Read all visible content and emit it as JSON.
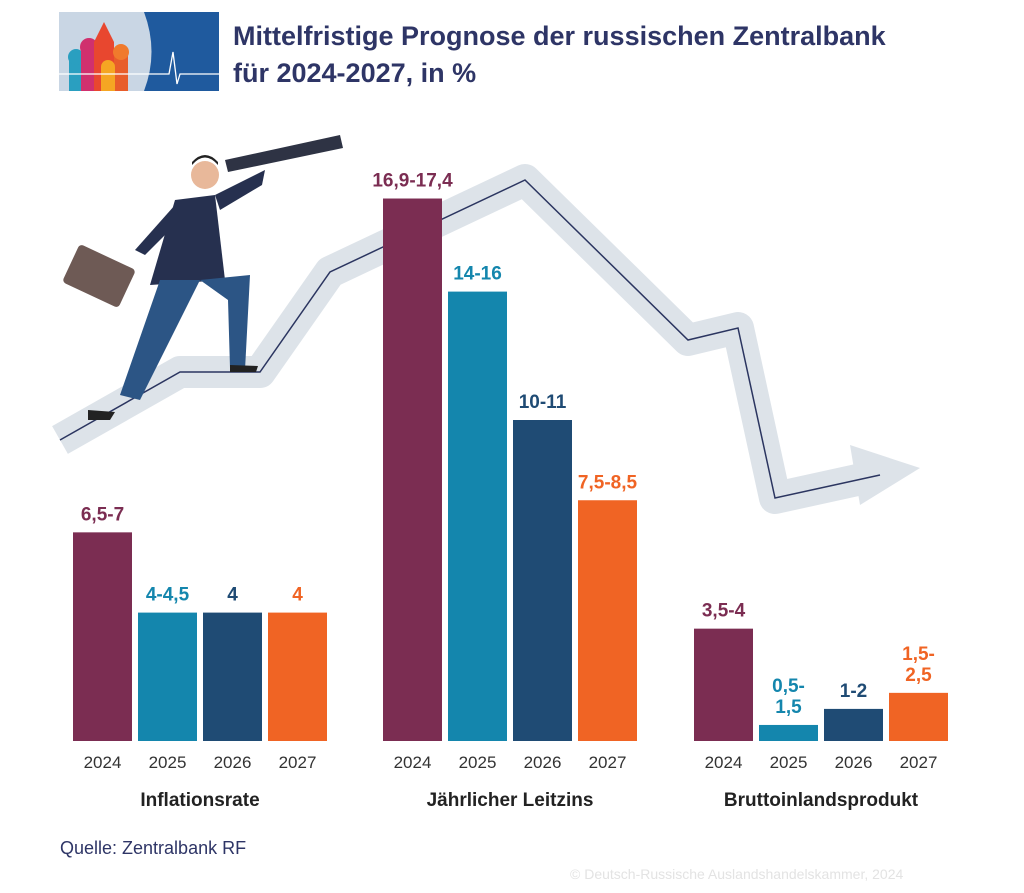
{
  "header": {
    "title_line1": "Mittelfristige Prognose der russischen Zentralbank",
    "title_line2": "für 2024-2027, in %"
  },
  "footer": {
    "source": "Quelle: Zentralbank RF",
    "copyright": "© Deutsch-Russische Auslandshandelskammer, 2024"
  },
  "colors": {
    "2024": "#7b2d52",
    "2025": "#1486ad",
    "2026": "#1f4b74",
    "2027": "#f06424",
    "title": "#2e3566"
  },
  "chart_data": [
    {
      "type": "bar",
      "title": "Inflationsrate",
      "categories": [
        "2024",
        "2025",
        "2026",
        "2027"
      ],
      "data_labels": [
        "6,5-7",
        "4-4,5",
        "4",
        "4"
      ],
      "ranges": [
        [
          6.5,
          7
        ],
        [
          4,
          4.5
        ],
        [
          4,
          4
        ],
        [
          4,
          4
        ]
      ]
    },
    {
      "type": "bar",
      "title": "Jährlicher Leitzins",
      "categories": [
        "2024",
        "2025",
        "2026",
        "2027"
      ],
      "data_labels": [
        "16,9-17,4",
        "14-16",
        "10-11",
        "7,5-8,5"
      ],
      "ranges": [
        [
          16.9,
          17.4
        ],
        [
          14,
          16
        ],
        [
          10,
          11
        ],
        [
          7.5,
          8.5
        ]
      ]
    },
    {
      "type": "bar",
      "title": "Bruttoinlandsprodukt",
      "categories": [
        "2024",
        "2025",
        "2026",
        "2027"
      ],
      "data_labels": [
        "3,5-4",
        "0,5-\n1,5",
        "1-2",
        "1,5-\n2,5"
      ],
      "ranges": [
        [
          3.5,
          4
        ],
        [
          0.5,
          1.5
        ],
        [
          1,
          2
        ],
        [
          1.5,
          2.5
        ]
      ]
    }
  ]
}
